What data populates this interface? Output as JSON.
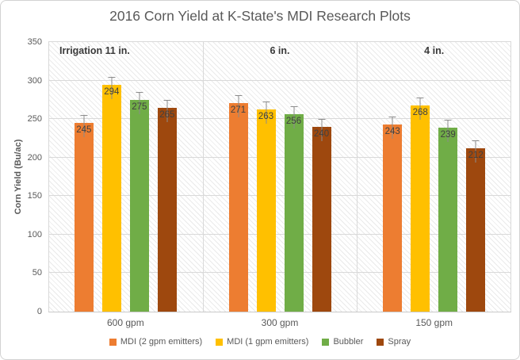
{
  "chart_data": {
    "type": "bar",
    "title": "2016 Corn Yield at K-State's MDI Research Plots",
    "ylabel": "Corn Yield (Bu/ac)",
    "xlabel": "",
    "ylim": [
      0,
      350
    ],
    "yticks": [
      0,
      50,
      100,
      150,
      200,
      250,
      300,
      350
    ],
    "grid": true,
    "legend_position": "bottom",
    "plot_background": "diagonal-hatch",
    "categories": [
      "600 gpm",
      "300 gpm",
      "150 gpm"
    ],
    "group_annotations": [
      "Irrigation 11 in.",
      "6 in.",
      "4 in."
    ],
    "series": [
      {
        "name": "MDI (2 gpm emitters)",
        "color": "#ED7D31",
        "values": [
          245,
          271,
          243
        ]
      },
      {
        "name": "MDI (1 gpm emitters)",
        "color": "#FFC000",
        "values": [
          294,
          263,
          268
        ]
      },
      {
        "name": "Bubbler",
        "color": "#70AD47",
        "values": [
          275,
          256,
          239
        ]
      },
      {
        "name": "Spray",
        "color": "#9E480E",
        "values": [
          265,
          240,
          212
        ]
      }
    ],
    "error_bars": {
      "shown": true,
      "approx_extent_units": 10
    },
    "data_labels_shown": true
  },
  "colors": {
    "title_text": "#595959",
    "axis_text": "#595959",
    "data_label_text": "#404040",
    "annotation_text": "#3a3a3a",
    "gridline": "#d9d9d9",
    "error_bar": "#8c8c8c",
    "chart_border": "#d2d2d2",
    "background": "#ffffff"
  }
}
